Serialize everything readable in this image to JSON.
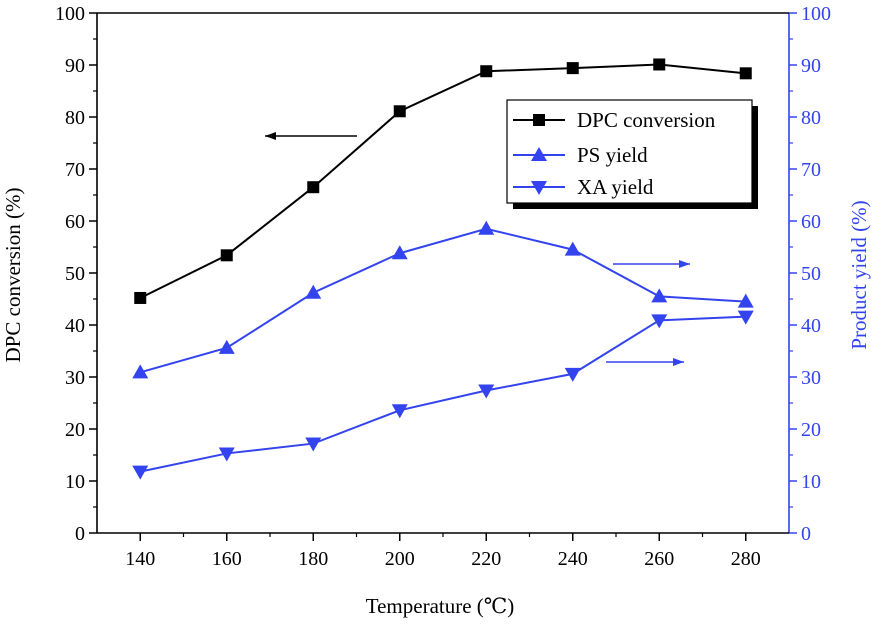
{
  "chart_data": {
    "type": "line",
    "x": [
      140,
      160,
      180,
      200,
      220,
      240,
      260,
      280
    ],
    "xlabel": "Temperature (℃)",
    "ylabel_left": "DPC conversion (%)",
    "ylabel_right": "Product yield (%)",
    "xlim": [
      130,
      290
    ],
    "ylim_left": [
      0,
      100
    ],
    "ylim_right": [
      0,
      100
    ],
    "x_ticks": [
      140,
      160,
      180,
      200,
      220,
      240,
      260,
      280
    ],
    "y_ticks": [
      0,
      10,
      20,
      30,
      40,
      50,
      60,
      70,
      80,
      90,
      100
    ],
    "grid": false,
    "legend_position": "top-right",
    "series": [
      {
        "name": "DPC conversion",
        "axis": "left",
        "marker": "square",
        "color": "#000000",
        "values": [
          45.2,
          53.4,
          66.5,
          81.1,
          88.8,
          89.4,
          90.1,
          88.4
        ]
      },
      {
        "name": "PS yield",
        "axis": "right",
        "marker": "triangle-up",
        "color": "#3344ee",
        "values": [
          30.9,
          35.6,
          46.2,
          53.8,
          58.5,
          54.5,
          45.5,
          44.5
        ]
      },
      {
        "name": "XA yield",
        "axis": "right",
        "marker": "triangle-down",
        "color": "#3344ee",
        "values": [
          11.8,
          15.3,
          17.2,
          23.6,
          27.4,
          30.6,
          40.9,
          41.6
        ]
      }
    ],
    "annotations": [
      {
        "type": "arrow",
        "direction": "left",
        "series": "DPC conversion"
      },
      {
        "type": "arrow",
        "direction": "right",
        "series": "PS yield"
      },
      {
        "type": "arrow",
        "direction": "right",
        "series": "XA yield"
      }
    ]
  }
}
